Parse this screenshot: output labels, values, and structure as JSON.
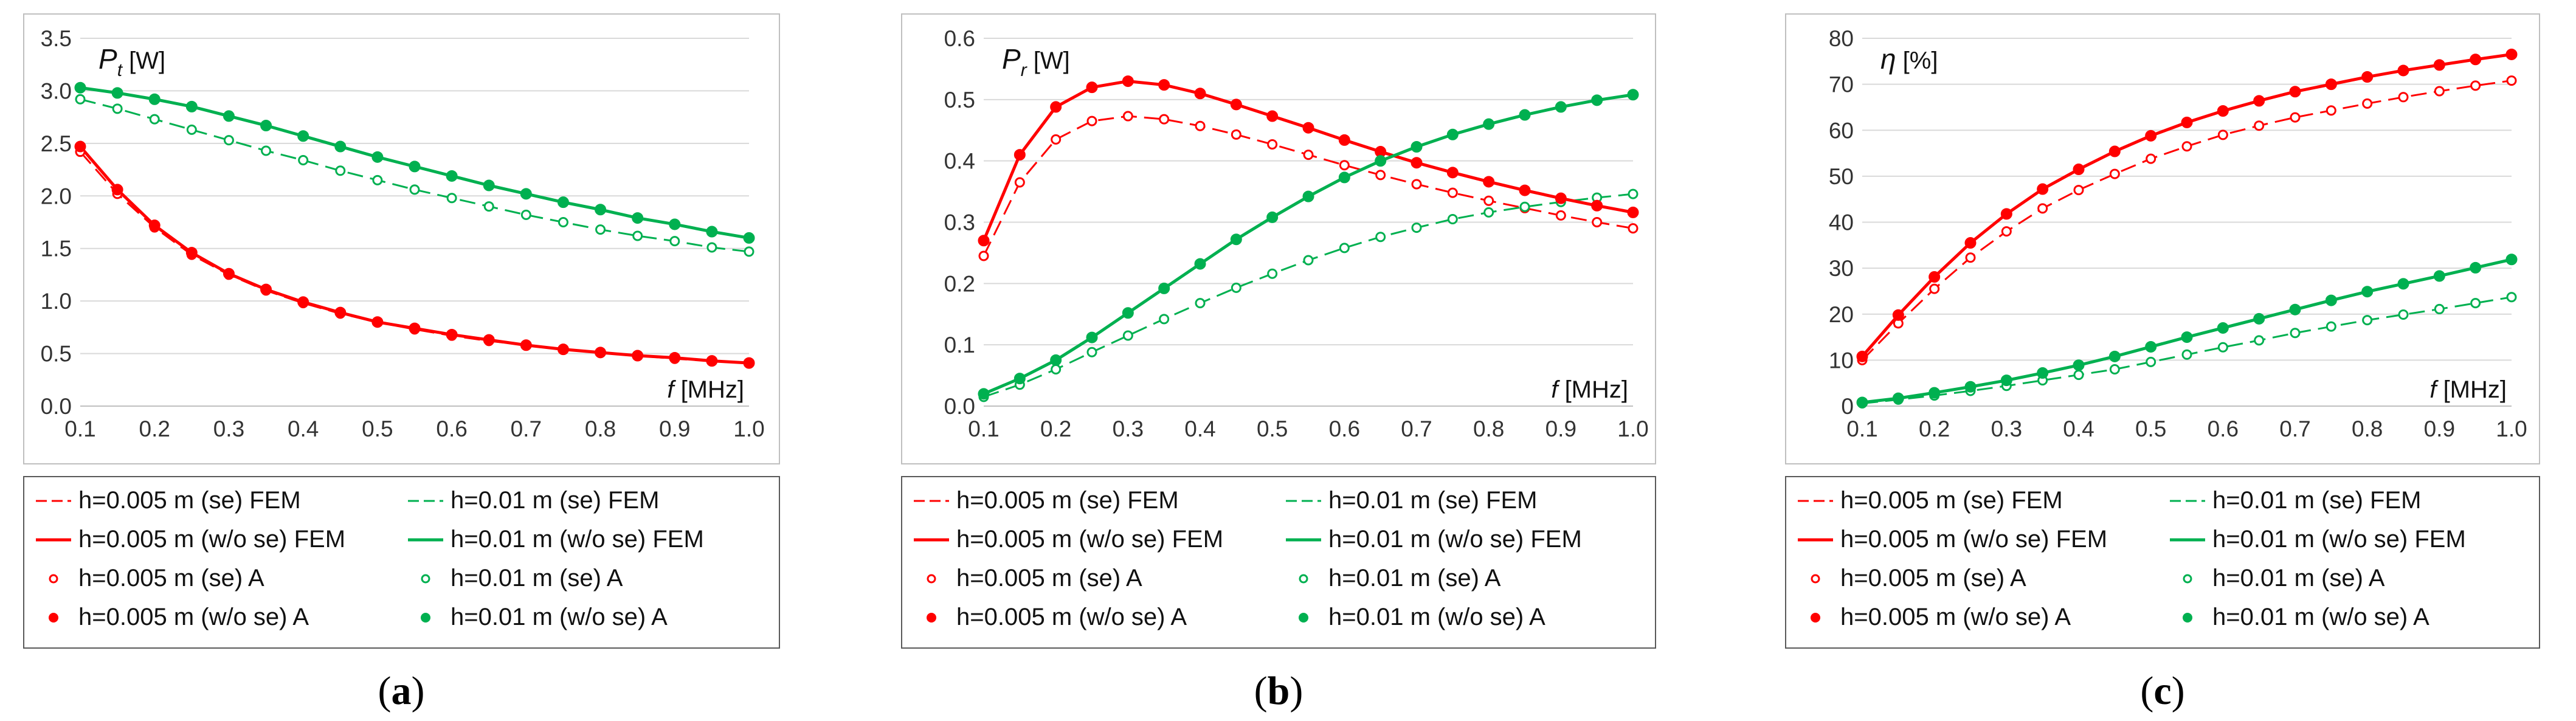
{
  "colors": {
    "red": "#ff0000",
    "green": "#00b050",
    "grid": "#d9d9d9",
    "frame": "#bfbfbf"
  },
  "panel_labels": [
    "(a)",
    "(b)",
    "(c)"
  ],
  "legend": [
    {
      "label": "h=0.005 m (se) FEM",
      "color": "red",
      "style": "dash"
    },
    {
      "label": "h=0.01 m (se) FEM",
      "color": "green",
      "style": "dash"
    },
    {
      "label": "h=0.005 m (w/o se) FEM",
      "color": "red",
      "style": "solid"
    },
    {
      "label": "h=0.01 m (w/o se) FEM",
      "color": "green",
      "style": "solid"
    },
    {
      "label": "h=0.005 m (se) A",
      "color": "red",
      "style": "open"
    },
    {
      "label": "h=0.01 m (se) A",
      "color": "green",
      "style": "open"
    },
    {
      "label": "h=0.005 m (w/o se) A",
      "color": "red",
      "style": "filled"
    },
    {
      "label": "h=0.01 m (w/o se) A",
      "color": "green",
      "style": "filled"
    }
  ],
  "chart_data": [
    {
      "type": "line",
      "ylabel_sym": "P",
      "ylabel_sub": "t",
      "ylabel_unit": " [W]",
      "xlabel_sym": "f",
      "xlabel_unit": " [MHz]",
      "xlim": [
        0.1,
        1.0
      ],
      "x_ticks": [
        "0.1",
        "0.2",
        "0.3",
        "0.4",
        "0.5",
        "0.6",
        "0.7",
        "0.8",
        "0.9",
        "1.0"
      ],
      "ylim": [
        0,
        3.5
      ],
      "y_ticks": [
        "0.0",
        "0.5",
        "1.0",
        "1.5",
        "2.0",
        "2.5",
        "3.0",
        "3.5"
      ],
      "x": [
        0.1,
        0.15,
        0.2,
        0.25,
        0.3,
        0.35,
        0.4,
        0.45,
        0.5,
        0.55,
        0.6,
        0.65,
        0.7,
        0.75,
        0.8,
        0.85,
        0.9,
        0.95,
        1.0
      ],
      "series": [
        {
          "name": "h=0.005 m (se)",
          "color": "red",
          "se": true,
          "values": [
            2.42,
            2.02,
            1.7,
            1.44,
            1.25,
            1.1,
            0.98,
            0.88,
            0.8,
            0.73,
            0.67,
            0.62,
            0.58,
            0.54,
            0.51,
            0.48,
            0.45,
            0.43,
            0.41
          ]
        },
        {
          "name": "h=0.01 m (se)",
          "color": "green",
          "se": true,
          "values": [
            2.92,
            2.83,
            2.73,
            2.63,
            2.53,
            2.43,
            2.34,
            2.24,
            2.15,
            2.06,
            1.98,
            1.9,
            1.82,
            1.75,
            1.68,
            1.62,
            1.57,
            1.51,
            1.47
          ]
        },
        {
          "name": "h=0.005 m (w/o se)",
          "color": "red",
          "se": false,
          "values": [
            2.47,
            2.06,
            1.72,
            1.46,
            1.26,
            1.11,
            0.99,
            0.89,
            0.8,
            0.74,
            0.68,
            0.63,
            0.58,
            0.54,
            0.51,
            0.48,
            0.46,
            0.43,
            0.41
          ]
        },
        {
          "name": "h=0.01 m (w/o se)",
          "color": "green",
          "se": false,
          "values": [
            3.03,
            2.98,
            2.92,
            2.85,
            2.76,
            2.67,
            2.57,
            2.47,
            2.37,
            2.28,
            2.19,
            2.1,
            2.02,
            1.94,
            1.87,
            1.79,
            1.73,
            1.66,
            1.6
          ]
        }
      ]
    },
    {
      "type": "line",
      "ylabel_sym": "P",
      "ylabel_sub": "r",
      "ylabel_unit": " [W]",
      "xlabel_sym": "f",
      "xlabel_unit": " [MHz]",
      "xlim": [
        0.1,
        1.0
      ],
      "x_ticks": [
        "0.1",
        "0.2",
        "0.3",
        "0.4",
        "0.5",
        "0.6",
        "0.7",
        "0.8",
        "0.9",
        "1.0"
      ],
      "ylim": [
        0,
        0.6
      ],
      "y_ticks": [
        "0.0",
        "0.1",
        "0.2",
        "0.3",
        "0.4",
        "0.5",
        "0.6"
      ],
      "x": [
        0.1,
        0.15,
        0.2,
        0.25,
        0.3,
        0.35,
        0.4,
        0.45,
        0.5,
        0.55,
        0.6,
        0.65,
        0.7,
        0.75,
        0.8,
        0.85,
        0.9,
        0.95,
        1.0
      ],
      "series": [
        {
          "name": "h=0.005 m (se)",
          "color": "red",
          "se": true,
          "values": [
            0.245,
            0.365,
            0.435,
            0.465,
            0.473,
            0.468,
            0.457,
            0.443,
            0.427,
            0.41,
            0.393,
            0.377,
            0.362,
            0.348,
            0.335,
            0.323,
            0.311,
            0.3,
            0.29
          ]
        },
        {
          "name": "h=0.01 m (se)",
          "color": "green",
          "se": true,
          "values": [
            0.015,
            0.035,
            0.06,
            0.088,
            0.115,
            0.142,
            0.168,
            0.193,
            0.216,
            0.238,
            0.258,
            0.276,
            0.291,
            0.305,
            0.316,
            0.325,
            0.333,
            0.34,
            0.346
          ]
        },
        {
          "name": "h=0.005 m (w/o se)",
          "color": "red",
          "se": false,
          "values": [
            0.27,
            0.41,
            0.488,
            0.52,
            0.53,
            0.524,
            0.51,
            0.492,
            0.473,
            0.454,
            0.434,
            0.415,
            0.397,
            0.381,
            0.366,
            0.352,
            0.339,
            0.327,
            0.316
          ]
        },
        {
          "name": "h=0.01 m (w/o se)",
          "color": "green",
          "se": false,
          "values": [
            0.02,
            0.045,
            0.075,
            0.112,
            0.152,
            0.192,
            0.232,
            0.272,
            0.308,
            0.342,
            0.373,
            0.4,
            0.423,
            0.443,
            0.46,
            0.475,
            0.488,
            0.499,
            0.508
          ]
        }
      ]
    },
    {
      "type": "line",
      "ylabel_sym": "η",
      "ylabel_sub": "",
      "ylabel_unit": " [%]",
      "xlabel_sym": "f",
      "xlabel_unit": " [MHz]",
      "xlim": [
        0.1,
        1.0
      ],
      "x_ticks": [
        "0.1",
        "0.2",
        "0.3",
        "0.4",
        "0.5",
        "0.6",
        "0.7",
        "0.8",
        "0.9",
        "1.0"
      ],
      "ylim": [
        0,
        80
      ],
      "y_ticks": [
        "0",
        "10",
        "20",
        "30",
        "40",
        "50",
        "60",
        "70",
        "80"
      ],
      "x": [
        0.1,
        0.15,
        0.2,
        0.25,
        0.3,
        0.35,
        0.4,
        0.45,
        0.5,
        0.55,
        0.6,
        0.65,
        0.7,
        0.75,
        0.8,
        0.85,
        0.9,
        0.95,
        1.0
      ],
      "series": [
        {
          "name": "h=0.005 m (se)",
          "color": "red",
          "se": true,
          "values": [
            10.0,
            18.0,
            25.5,
            32.3,
            38.0,
            43.0,
            47.0,
            50.5,
            53.8,
            56.5,
            59.0,
            61.0,
            62.8,
            64.3,
            65.8,
            67.2,
            68.5,
            69.7,
            70.8
          ]
        },
        {
          "name": "h=0.01 m (se)",
          "color": "green",
          "se": true,
          "values": [
            0.6,
            1.4,
            2.3,
            3.3,
            4.4,
            5.6,
            6.8,
            8.0,
            9.6,
            11.2,
            12.8,
            14.3,
            15.9,
            17.3,
            18.7,
            19.9,
            21.1,
            22.4,
            23.7
          ]
        },
        {
          "name": "h=0.005 m (w/o se)",
          "color": "red",
          "se": false,
          "values": [
            10.8,
            19.8,
            28.1,
            35.5,
            41.8,
            47.2,
            51.5,
            55.4,
            58.8,
            61.7,
            64.2,
            66.4,
            68.4,
            70.0,
            71.6,
            73.0,
            74.2,
            75.4,
            76.5
          ]
        },
        {
          "name": "h=0.01 m (w/o se)",
          "color": "green",
          "se": false,
          "values": [
            0.8,
            1.7,
            2.9,
            4.2,
            5.6,
            7.2,
            8.9,
            10.8,
            12.9,
            15.0,
            17.0,
            19.0,
            21.0,
            23.0,
            24.9,
            26.6,
            28.3,
            30.1,
            31.9
          ]
        }
      ]
    }
  ]
}
